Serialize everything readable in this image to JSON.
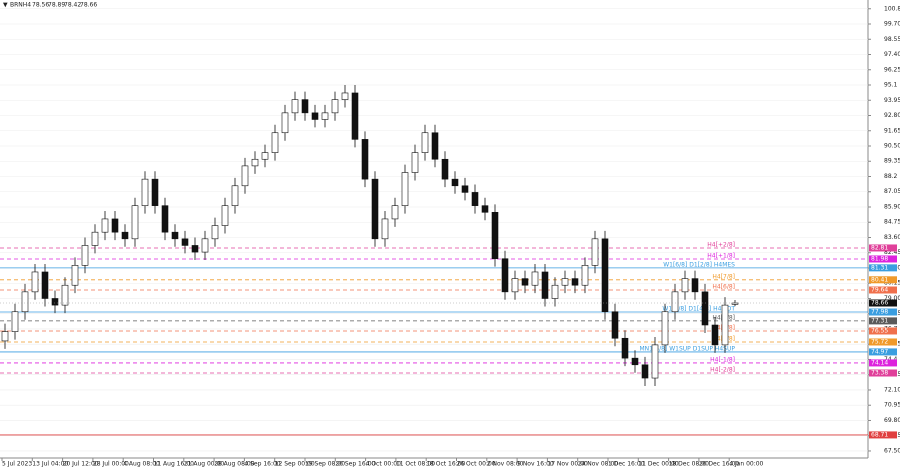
{
  "chart_data": {
    "type": "candlestick",
    "symbol": "BRNH4",
    "open": [
      75.8,
      76.5,
      78,
      79.5,
      81,
      79,
      78.5,
      80,
      81.5,
      83,
      84,
      85,
      84,
      83.5,
      86,
      88,
      86,
      84,
      83.5,
      83,
      82.5,
      83.5,
      84.5,
      86,
      87.5,
      89,
      89.5,
      90,
      91.5,
      93,
      94,
      93,
      92.5,
      93,
      94,
      94.5,
      91,
      88,
      83.5,
      85,
      86,
      88.5,
      90,
      91.5,
      89.5,
      88,
      87.5,
      87,
      86,
      85.5,
      82,
      79.5,
      80.5,
      80,
      81,
      79,
      80,
      80.5,
      80,
      81.5,
      83.5,
      78,
      76,
      74.5,
      74,
      73,
      75.5,
      78,
      79.5,
      80.5,
      79.5,
      77,
      75.5,
      78.56
    ],
    "high": [
      77.1,
      78.6,
      80.1,
      81.6,
      81.6,
      79.6,
      80.6,
      82.1,
      83.6,
      84.6,
      85.6,
      85.6,
      84.6,
      86.6,
      88.6,
      88.6,
      86.6,
      84.6,
      84.1,
      83.6,
      84.1,
      85.1,
      86.6,
      88.1,
      89.6,
      90.1,
      90.6,
      92.1,
      93.6,
      94.6,
      94.6,
      93.6,
      93.6,
      94.6,
      95.1,
      95.1,
      91.6,
      88.6,
      85.6,
      86.6,
      89.1,
      90.6,
      92.1,
      92.1,
      90.1,
      88.6,
      88.1,
      87.6,
      86.6,
      86.1,
      82.6,
      81.1,
      81.1,
      81.6,
      81.6,
      80.6,
      81.1,
      81.1,
      82.1,
      84.1,
      84.1,
      78.6,
      76.6,
      75.1,
      74.6,
      76.1,
      78.6,
      80.1,
      81.1,
      81.1,
      80.1,
      77.6,
      79.1,
      78.89
    ],
    "low": [
      75.2,
      75.9,
      77.4,
      78.9,
      78.4,
      77.9,
      77.9,
      79.4,
      80.9,
      82.4,
      83.4,
      83.4,
      82.9,
      82.9,
      85.4,
      85.4,
      83.4,
      82.9,
      82.4,
      81.9,
      81.9,
      82.9,
      83.9,
      85.4,
      86.9,
      88.4,
      88.9,
      89.4,
      90.9,
      92.4,
      92.4,
      91.9,
      91.9,
      92.4,
      93.4,
      90.4,
      87.4,
      82.9,
      82.9,
      84.4,
      85.4,
      87.9,
      89.4,
      88.9,
      87.4,
      86.9,
      86.4,
      85.4,
      84.9,
      81.4,
      78.9,
      78.9,
      79.4,
      79.4,
      78.4,
      78.4,
      79.4,
      79.4,
      79.4,
      80.9,
      77.4,
      75.4,
      73.9,
      73.4,
      72.4,
      72.4,
      74.9,
      77.4,
      78.9,
      78.9,
      76.4,
      74.9,
      74.9,
      78.42
    ],
    "close": [
      76.5,
      78,
      79.5,
      81,
      79,
      78.5,
      80,
      81.5,
      83,
      84,
      85,
      84,
      83.5,
      86,
      88,
      86,
      84,
      83.5,
      83,
      82.5,
      83.5,
      84.5,
      86,
      87.5,
      89,
      89.5,
      90,
      91.5,
      93,
      94,
      93,
      92.5,
      93,
      94,
      94.5,
      91,
      88,
      83.5,
      85,
      86,
      88.5,
      90,
      91.5,
      89.5,
      88,
      87.5,
      87,
      86,
      85.5,
      82,
      79.5,
      80.5,
      80,
      81,
      79,
      80,
      80.5,
      80,
      81.5,
      83.5,
      78,
      76,
      74.5,
      74,
      73,
      75.5,
      78,
      79.5,
      80.5,
      79.5,
      77,
      75.5,
      78.5,
      78.66
    ],
    "x_labels": [
      "5 Jul 2023",
      "13 Jul 04:00",
      "20 Jul 12:00",
      "28 Jul 00:00",
      "4 Aug 08:00",
      "11 Aug 16:00",
      "21 Aug 00:00",
      "28 Aug 08:00",
      "4 Sep 16:00",
      "12 Sep 00:00",
      "19 Sep 08:00",
      "26 Sep 16:00",
      "4 Oct 00:00",
      "11 Oct 08:00",
      "18 Oct 16:00",
      "26 Oct 00:00",
      "2 Nov 08:00",
      "9 Nov 16:00",
      "17 Nov 00:00",
      "24 Nov 08:00",
      "1 Dec 16:00",
      "11 Dec 00:00",
      "18 Dec 08:00",
      "26 Dec 16:00",
      "4 Jan 00:00"
    ],
    "ylim": [
      66.97,
      101.36
    ],
    "yticks": [
      {
        "value": 67.5,
        "label": "67.50"
      },
      68.65,
      {
        "value": 69.8,
        "label": "69.80"
      },
      70.95,
      {
        "value": 72.1,
        "label": "72.10"
      },
      73.25,
      74.4,
      75.55,
      76.7,
      77.85,
      {
        "value": 79,
        "label": "79.00"
      },
      80.15,
      {
        "value": 81.3,
        "label": "81.30"
      },
      82.45,
      {
        "value": 83.6,
        "label": "83.60"
      },
      84.75,
      {
        "value": 85.9,
        "label": "85.90"
      },
      87.05,
      88.2,
      89.35,
      {
        "value": 90.5,
        "label": "90.50"
      },
      91.65,
      {
        "value": 92.8,
        "label": "92.80"
      },
      93.95,
      95.1,
      96.25,
      {
        "value": 97.4,
        "label": "97.40"
      },
      98.55,
      {
        "value": 99.7,
        "label": "99.70"
      },
      100.85
    ],
    "grid": true,
    "levels": [
      {
        "label": "H4[+2/8]",
        "value": 82.81,
        "color": "#e0409a",
        "dashed": true
      },
      {
        "label": "H4[+1/8]",
        "value": 81.98,
        "color": "#dd22dd",
        "dashed": true
      },
      {
        "label": "W1[6/8] D1[2/8] H4MES",
        "value": 81.31,
        "color": "#3a9ee0",
        "dashed": false
      },
      {
        "label": "H4[7/8]",
        "value": 80.41,
        "color": "#f09a2a",
        "dashed": true
      },
      {
        "label": "H4[6/8]",
        "value": 79.64,
        "color": "#f0704c",
        "dashed": true
      },
      {
        "label": "W1[7/8] D1[4/8] H4MOT",
        "value": 77.98,
        "color": "#3a9ee0",
        "dashed": false
      },
      {
        "label": "H4[4/8]",
        "value": 77.31,
        "color": "#5a5a5a",
        "dashed": true
      },
      {
        "label": "H4[3/8]",
        "value": 76.55,
        "color": "#f0704c",
        "dashed": true
      },
      {
        "label": "H4[2/8]",
        "value": 75.72,
        "color": "#f09a2a",
        "dashed": true
      },
      {
        "label": "MN1[5/8] W1SUP D1SUP H4SUP",
        "value": 74.97,
        "color": "#3a9ee0",
        "dashed": false
      },
      {
        "label": "H4[-1/8]",
        "value": 74.14,
        "color": "#dd22dd",
        "dashed": true
      },
      {
        "label": "H4[-2/8]",
        "value": 73.38,
        "color": "#e0409a",
        "dashed": true
      },
      {
        "value": 68.71,
        "color": "#e04040",
        "dashed": false
      }
    ]
  }
}
